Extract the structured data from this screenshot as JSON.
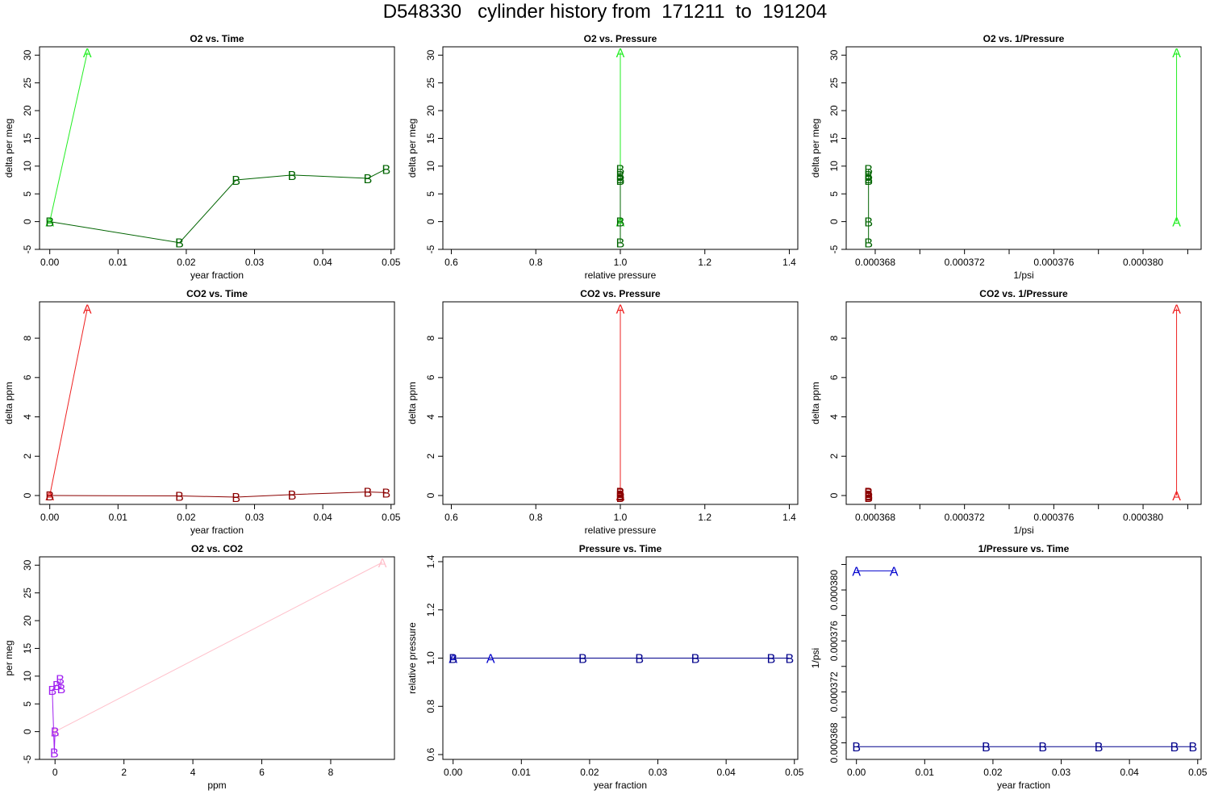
{
  "page_title": "D548330   cylinder history from  171211  to  191204",
  "chart_data": [
    {
      "type": "line",
      "title": "O2 vs. Time",
      "xlabel": "year fraction",
      "ylabel": "delta per meg",
      "xlim": [
        -0.0015,
        0.0505
      ],
      "ylim": [
        -5,
        31.5
      ],
      "xticks": [
        0,
        0.01,
        0.02,
        0.03,
        0.04,
        0.05
      ],
      "xtick_labels": [
        "0.00",
        "0.01",
        "0.02",
        "0.03",
        "0.04",
        "0.05"
      ],
      "yticks": [
        -5,
        0,
        5,
        10,
        15,
        20,
        25,
        30
      ],
      "ytick_labels": [
        "-5",
        "0",
        "5",
        "10",
        "15",
        "20",
        "25",
        "30"
      ],
      "series": [
        {
          "name": "A",
          "color": "#22ee22",
          "x": [
            0,
            0.0055
          ],
          "y": [
            0,
            30.5
          ]
        },
        {
          "name": "B",
          "color": "#006400",
          "x": [
            0,
            0.019,
            0.0273,
            0.0355,
            0.0466,
            0.0493
          ],
          "y": [
            0,
            -3.8,
            7.5,
            8.4,
            7.8,
            9.5
          ]
        }
      ]
    },
    {
      "type": "line",
      "title": "O2 vs. Pressure",
      "xlabel": "relative pressure",
      "ylabel": "delta per meg",
      "xlim": [
        0.58,
        1.42
      ],
      "ylim": [
        -5,
        31.5
      ],
      "xticks": [
        0.6,
        0.8,
        1.0,
        1.2,
        1.4
      ],
      "xtick_labels": [
        "0.6",
        "0.8",
        "1.0",
        "1.2",
        "1.4"
      ],
      "yticks": [
        -5,
        0,
        5,
        10,
        15,
        20,
        25,
        30
      ],
      "ytick_labels": [
        "-5",
        "0",
        "5",
        "10",
        "15",
        "20",
        "25",
        "30"
      ],
      "series": [
        {
          "name": "A",
          "color": "#22ee22",
          "x": [
            1,
            1
          ],
          "y": [
            0,
            30.5
          ]
        },
        {
          "name": "B",
          "color": "#006400",
          "x": [
            1,
            1,
            1,
            1,
            1,
            1
          ],
          "y": [
            0,
            -3.8,
            7.5,
            8.4,
            7.8,
            9.5
          ]
        }
      ]
    },
    {
      "type": "line",
      "title": "O2 vs. 1/Pressure",
      "xlabel": "1/psi",
      "ylabel": "delta per meg",
      "xlim": [
        0.0003667,
        0.0003826
      ],
      "ylim": [
        -5,
        31.5
      ],
      "xticks": [
        0.000368,
        0.00037,
        0.000372,
        0.000374,
        0.000376,
        0.000378,
        0.00038,
        0.000382
      ],
      "xtick_labels": [
        "0.000368",
        "",
        "0.000372",
        "",
        "0.000376",
        "",
        "0.000380",
        ""
      ],
      "yticks": [
        -5,
        0,
        5,
        10,
        15,
        20,
        25,
        30
      ],
      "ytick_labels": [
        "-5",
        "0",
        "5",
        "10",
        "15",
        "20",
        "25",
        "30"
      ],
      "series": [
        {
          "name": "A",
          "color": "#22ee22",
          "x": [
            0.0003815,
            0.0003815
          ],
          "y": [
            0,
            30.5
          ]
        },
        {
          "name": "B",
          "color": "#006400",
          "x": [
            0.0003677,
            0.0003677,
            0.0003677,
            0.0003677,
            0.0003677,
            0.0003677
          ],
          "y": [
            0,
            -3.8,
            7.5,
            8.4,
            7.8,
            9.5
          ]
        }
      ]
    },
    {
      "type": "line",
      "title": "CO2 vs. Time",
      "xlabel": "year fraction",
      "ylabel": "delta ppm",
      "xlim": [
        -0.0015,
        0.0505
      ],
      "ylim": [
        -0.45,
        9.85
      ],
      "xticks": [
        0,
        0.01,
        0.02,
        0.03,
        0.04,
        0.05
      ],
      "xtick_labels": [
        "0.00",
        "0.01",
        "0.02",
        "0.03",
        "0.04",
        "0.05"
      ],
      "yticks": [
        0,
        2,
        4,
        6,
        8
      ],
      "ytick_labels": [
        "0",
        "2",
        "4",
        "6",
        "8"
      ],
      "series": [
        {
          "name": "A",
          "color": "#ee2222",
          "x": [
            0,
            0.0055
          ],
          "y": [
            0,
            9.5
          ]
        },
        {
          "name": "B",
          "color": "#8b0000",
          "x": [
            0,
            0.019,
            0.0273,
            0.0355,
            0.0466,
            0.0493
          ],
          "y": [
            0,
            -0.02,
            -0.08,
            0.05,
            0.18,
            0.15
          ]
        }
      ]
    },
    {
      "type": "line",
      "title": "CO2 vs. Pressure",
      "xlabel": "relative pressure",
      "ylabel": "delta ppm",
      "xlim": [
        0.58,
        1.42
      ],
      "ylim": [
        -0.45,
        9.85
      ],
      "xticks": [
        0.6,
        0.8,
        1.0,
        1.2,
        1.4
      ],
      "xtick_labels": [
        "0.6",
        "0.8",
        "1.0",
        "1.2",
        "1.4"
      ],
      "yticks": [
        0,
        2,
        4,
        6,
        8
      ],
      "ytick_labels": [
        "0",
        "2",
        "4",
        "6",
        "8"
      ],
      "series": [
        {
          "name": "A",
          "color": "#ee2222",
          "x": [
            1,
            1
          ],
          "y": [
            0,
            9.5
          ]
        },
        {
          "name": "B",
          "color": "#8b0000",
          "x": [
            1,
            1,
            1,
            1,
            1,
            1
          ],
          "y": [
            0,
            -0.02,
            -0.08,
            0.05,
            0.18,
            0.15
          ]
        }
      ]
    },
    {
      "type": "line",
      "title": "CO2 vs. 1/Pressure",
      "xlabel": "1/psi",
      "ylabel": "delta ppm",
      "xlim": [
        0.0003667,
        0.0003826
      ],
      "ylim": [
        -0.45,
        9.85
      ],
      "xticks": [
        0.000368,
        0.00037,
        0.000372,
        0.000374,
        0.000376,
        0.000378,
        0.00038,
        0.000382
      ],
      "xtick_labels": [
        "0.000368",
        "",
        "0.000372",
        "",
        "0.000376",
        "",
        "0.000380",
        ""
      ],
      "yticks": [
        0,
        2,
        4,
        6,
        8
      ],
      "ytick_labels": [
        "0",
        "2",
        "4",
        "6",
        "8"
      ],
      "series": [
        {
          "name": "A",
          "color": "#ee2222",
          "x": [
            0.0003815,
            0.0003815
          ],
          "y": [
            0,
            9.5
          ]
        },
        {
          "name": "B",
          "color": "#8b0000",
          "x": [
            0.0003677,
            0.0003677,
            0.0003677,
            0.0003677,
            0.0003677,
            0.0003677
          ],
          "y": [
            0,
            -0.02,
            -0.08,
            0.05,
            0.18,
            0.15
          ]
        }
      ]
    },
    {
      "type": "line",
      "title": "O2 vs. CO2",
      "xlabel": "ppm",
      "ylabel": "per meg",
      "xlim": [
        -0.45,
        9.85
      ],
      "ylim": [
        -5,
        31.5
      ],
      "xticks": [
        0,
        2,
        4,
        6,
        8
      ],
      "xtick_labels": [
        "0",
        "2",
        "4",
        "6",
        "8"
      ],
      "yticks": [
        -5,
        0,
        5,
        10,
        15,
        20,
        25,
        30
      ],
      "ytick_labels": [
        "-5",
        "0",
        "5",
        "10",
        "15",
        "20",
        "25",
        "30"
      ],
      "series": [
        {
          "name": "A",
          "color": "#ffc0cb",
          "x": [
            0,
            9.5
          ],
          "y": [
            0,
            30.5
          ]
        },
        {
          "name": "B",
          "color": "#a020f0",
          "x": [
            0,
            -0.02,
            -0.08,
            0.05,
            0.18,
            0.15
          ],
          "y": [
            0,
            -3.8,
            7.5,
            8.4,
            7.8,
            9.5
          ]
        }
      ]
    },
    {
      "type": "line",
      "title": "Pressure vs. Time",
      "xlabel": "year fraction",
      "ylabel": "relative pressure",
      "xlim": [
        -0.0015,
        0.0505
      ],
      "ylim": [
        0.58,
        1.42
      ],
      "xticks": [
        0,
        0.01,
        0.02,
        0.03,
        0.04,
        0.05
      ],
      "xtick_labels": [
        "0.00",
        "0.01",
        "0.02",
        "0.03",
        "0.04",
        "0.05"
      ],
      "yticks": [
        0.6,
        0.8,
        1.0,
        1.2,
        1.4
      ],
      "ytick_labels": [
        "0.6",
        "0.8",
        "1.0",
        "1.2",
        "1.4"
      ],
      "series": [
        {
          "name": "A",
          "color": "#0000cd",
          "x": [
            0,
            0.0055
          ],
          "y": [
            1,
            1
          ]
        },
        {
          "name": "B",
          "color": "#00008b",
          "x": [
            0,
            0.019,
            0.0273,
            0.0355,
            0.0466,
            0.0493
          ],
          "y": [
            1,
            1,
            1,
            1,
            1,
            1
          ]
        }
      ]
    },
    {
      "type": "line",
      "title": "1/Pressure vs. Time",
      "xlabel": "year fraction",
      "ylabel": "1/psi",
      "xlim": [
        -0.0015,
        0.0505
      ],
      "ylim": [
        0.0003667,
        0.0003826
      ],
      "xticks": [
        0,
        0.01,
        0.02,
        0.03,
        0.04,
        0.05
      ],
      "xtick_labels": [
        "0.00",
        "0.01",
        "0.02",
        "0.03",
        "0.04",
        "0.05"
      ],
      "yticks": [
        0.000368,
        0.00037,
        0.000372,
        0.000374,
        0.000376,
        0.000378,
        0.00038,
        0.000382
      ],
      "ytick_labels": [
        "0.000368",
        "",
        "0.000372",
        "",
        "0.000376",
        "",
        "0.000380",
        ""
      ],
      "series": [
        {
          "name": "A",
          "color": "#0000cd",
          "x": [
            0,
            0.0055
          ],
          "y": [
            0.0003815,
            0.0003815
          ]
        },
        {
          "name": "B",
          "color": "#00008b",
          "x": [
            0,
            0.019,
            0.0273,
            0.0355,
            0.0466,
            0.0493
          ],
          "y": [
            0.0003677,
            0.0003677,
            0.0003677,
            0.0003677,
            0.0003677,
            0.0003677
          ]
        }
      ]
    }
  ]
}
